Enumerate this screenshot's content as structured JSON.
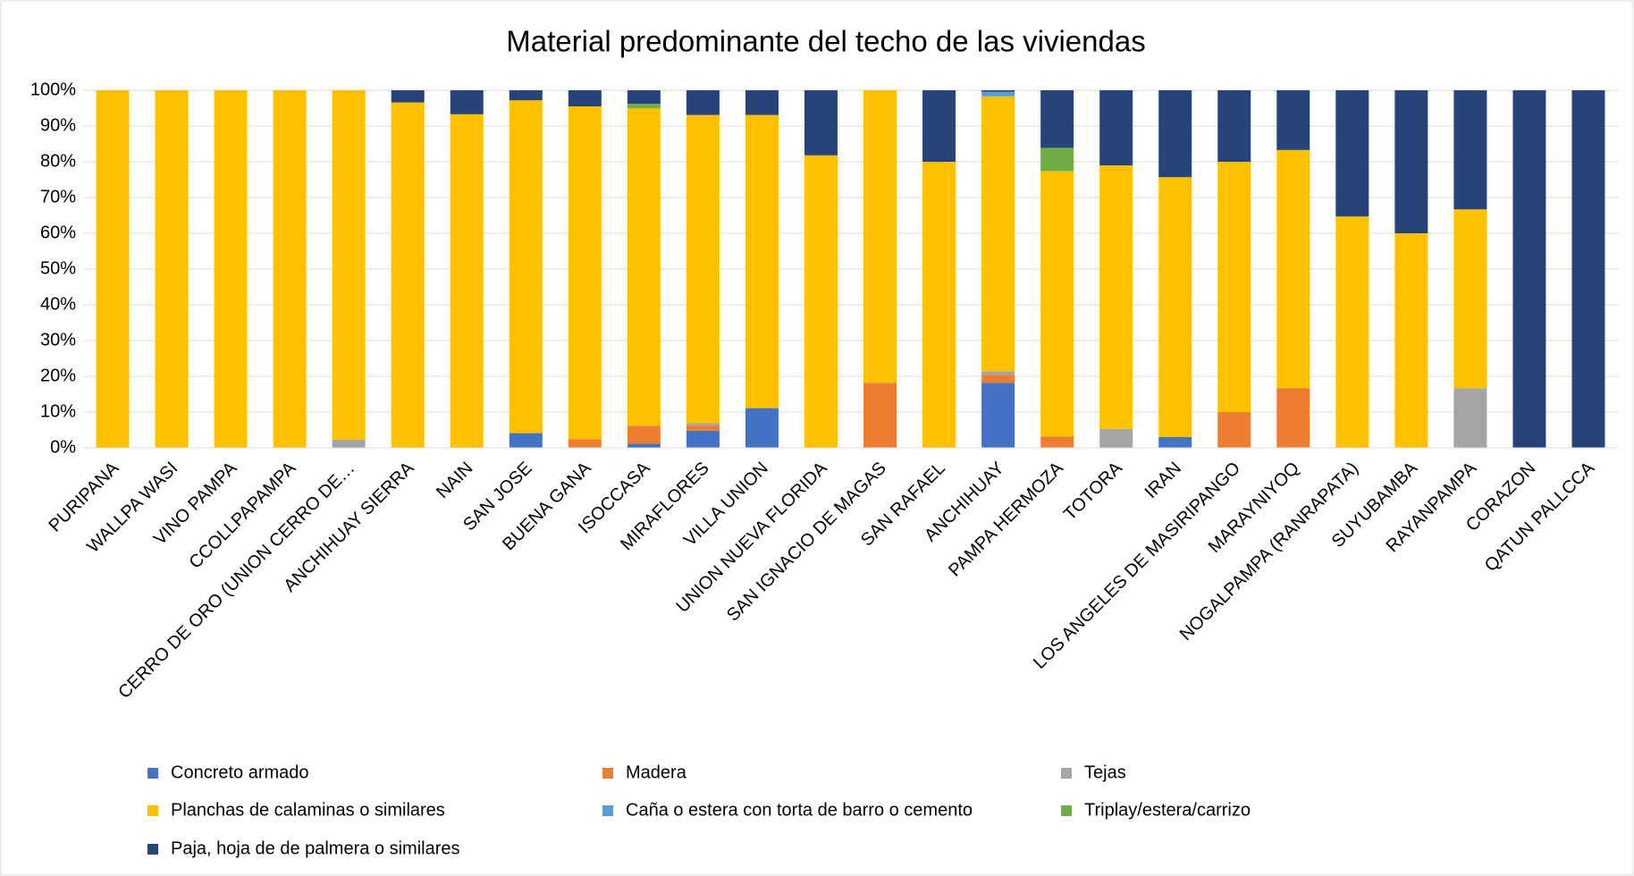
{
  "chart_data": {
    "type": "stacked_bar",
    "title": "Material predominante del techo de las viviendas",
    "categories": [
      "PURIPANA",
      "WALLPA WASI",
      "VINO PAMPA",
      "CCOLLPAPAMPA",
      "CERRO DE ORO (UNION CERRO DE…",
      "ANCHIHUAY SIERRA",
      "NAIN",
      "SAN JOSE",
      "BUENA GANA",
      "ISOCCASA",
      "MIRAFLORES",
      "VILLA UNION",
      "UNION NUEVA FLORIDA",
      "SAN IGNACIO DE MAGAS",
      "SAN RAFAEL",
      "ANCHIHUAY",
      "PAMPA HERMOZA",
      "TOTORA",
      "IRAN",
      "LOS ANGELES DE MASIRIPANGO",
      "MARAYNIYOQ",
      "NOGALPAMPA (RANRAPATA)",
      "SUYUBAMBA",
      "RAYANPAMPA",
      "CORAZON",
      "QATUN PALLCCA"
    ],
    "series": [
      {
        "name": "Concreto armado",
        "color": "#4472c4",
        "values": [
          0,
          0,
          0,
          0,
          0,
          0,
          0,
          4.1,
          0,
          1.2,
          4.8,
          11.1,
          0,
          0,
          0,
          18.2,
          0,
          0,
          3.0,
          0,
          0,
          0,
          0,
          0,
          0,
          0
        ]
      },
      {
        "name": "Madera",
        "color": "#ed7d31",
        "values": [
          0,
          0,
          0,
          0,
          0,
          0,
          0,
          0,
          2.4,
          5.0,
          1.4,
          0,
          0,
          18.2,
          0,
          2.2,
          3.2,
          0,
          0,
          10,
          16.7,
          0,
          0,
          0,
          0,
          0
        ]
      },
      {
        "name": "Tejas",
        "color": "#a5a5a5",
        "values": [
          0,
          0,
          0,
          0,
          2.3,
          0,
          0,
          0,
          0,
          0,
          0.7,
          0,
          0,
          0,
          0,
          1.0,
          0,
          5.3,
          0,
          0,
          0,
          0,
          0,
          16.7,
          0,
          0
        ]
      },
      {
        "name": "Planchas de calaminas o similares",
        "color": "#ffc000",
        "values": [
          100,
          100,
          100,
          100,
          97.7,
          96.6,
          93.3,
          93.1,
          93.1,
          88.8,
          86.2,
          82.0,
          81.8,
          81.8,
          80,
          76.9,
          74.2,
          73.7,
          72.7,
          70,
          66.6,
          64.7,
          60,
          50,
          0,
          0
        ]
      },
      {
        "name": "Caña o estera con torta de barro o cemento",
        "color": "#5b9bd5",
        "values": [
          0,
          0,
          0,
          0,
          0,
          0,
          0,
          0,
          0,
          0,
          0,
          0,
          0,
          0,
          0,
          1.3,
          0,
          0,
          0,
          0,
          0,
          0,
          0,
          0,
          0,
          0
        ]
      },
      {
        "name": "Triplay/estera/carrizo",
        "color": "#70ad47",
        "values": [
          0,
          0,
          0,
          0,
          0,
          0,
          0,
          0,
          0,
          1.2,
          0,
          0,
          0,
          0,
          0,
          0,
          6.5,
          0,
          0,
          0,
          0,
          0,
          0,
          0,
          0,
          0
        ]
      },
      {
        "name": "Paja, hoja de de palmera o similares",
        "color": "#264478",
        "values": [
          0,
          0,
          0,
          0,
          0,
          3.4,
          6.7,
          2.8,
          4.5,
          3.8,
          6.9,
          6.9,
          18.2,
          0,
          20,
          0.4,
          16.1,
          21,
          24.3,
          20,
          16.7,
          35.3,
          40,
          33.3,
          100,
          100
        ]
      }
    ],
    "ylim": [
      0,
      100
    ],
    "yticks": [
      {
        "value": 0,
        "label": "0%"
      },
      {
        "value": 10,
        "label": "10%"
      },
      {
        "value": 20,
        "label": "20%"
      },
      {
        "value": 30,
        "label": "30%"
      },
      {
        "value": 40,
        "label": "40%"
      },
      {
        "value": 50,
        "label": "50%"
      },
      {
        "value": 60,
        "label": "60%"
      },
      {
        "value": 70,
        "label": "70%"
      },
      {
        "value": 80,
        "label": "80%"
      },
      {
        "value": 90,
        "label": "90%"
      },
      {
        "value": 100,
        "label": "100%"
      }
    ],
    "grid": true
  }
}
